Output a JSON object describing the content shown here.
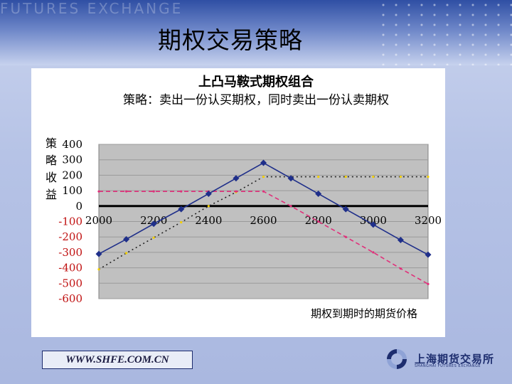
{
  "header": {
    "banner_text": "FUTURES EXCHANGE",
    "slide_title": "期权交易策略"
  },
  "footer": {
    "url": "WWW.SHFE.COM.CN",
    "logo_name": "上海期货交易所",
    "logo_sub": "SHANGHAI FUTURES EXCHANGE"
  },
  "colors": {
    "combo": "#1f2f8a",
    "short_call": "#222222",
    "short_put": "#e0307a",
    "put_dots": "#f4d000",
    "plot_bg": "#c0c0c0"
  },
  "chart_data": {
    "type": "line",
    "title": "上凸马鞍式期权组合",
    "subtitle": "策略：卖出一份认买期权，同时卖出一份认卖期权",
    "ylabel": "策略收益",
    "xlabel": "期权到期时的期货价格",
    "x_ticks": [
      "2000",
      "2200",
      "2400",
      "2600",
      "2800",
      "3000",
      "3200"
    ],
    "y_ticks": [
      "400",
      "300",
      "200",
      "100",
      "0",
      "-100",
      "-200",
      "-300",
      "-400",
      "-500",
      "-600"
    ],
    "xlim": [
      2000,
      3200
    ],
    "ylim": [
      -600,
      400
    ],
    "grid": true,
    "series": [
      {
        "key": "combo",
        "style": "solid-diamond",
        "x": [
          2000,
          2100,
          2200,
          2300,
          2400,
          2500,
          2600,
          2700,
          2800,
          2900,
          3000,
          3100,
          3200
        ],
        "y": [
          -310,
          -215,
          -115,
          -20,
          80,
          180,
          280,
          180,
          80,
          -20,
          -120,
          -220,
          -315
        ]
      },
      {
        "key": "short_call",
        "style": "dotted-black",
        "x": [
          2000,
          2100,
          2200,
          2300,
          2400,
          2500,
          2600,
          2700,
          2800,
          2900,
          3000,
          3100,
          3200
        ],
        "y": [
          -410,
          -305,
          -205,
          -105,
          0,
          90,
          190,
          190,
          190,
          190,
          190,
          190,
          190
        ]
      },
      {
        "key": "short_put",
        "style": "dashed-pink",
        "x": [
          2000,
          2100,
          2200,
          2300,
          2400,
          2500,
          2600,
          2700,
          2800,
          2900,
          3000,
          3100,
          3200
        ],
        "y": [
          95,
          95,
          95,
          95,
          95,
          95,
          95,
          0,
          -100,
          -200,
          -300,
          -405,
          -505
        ]
      }
    ]
  }
}
